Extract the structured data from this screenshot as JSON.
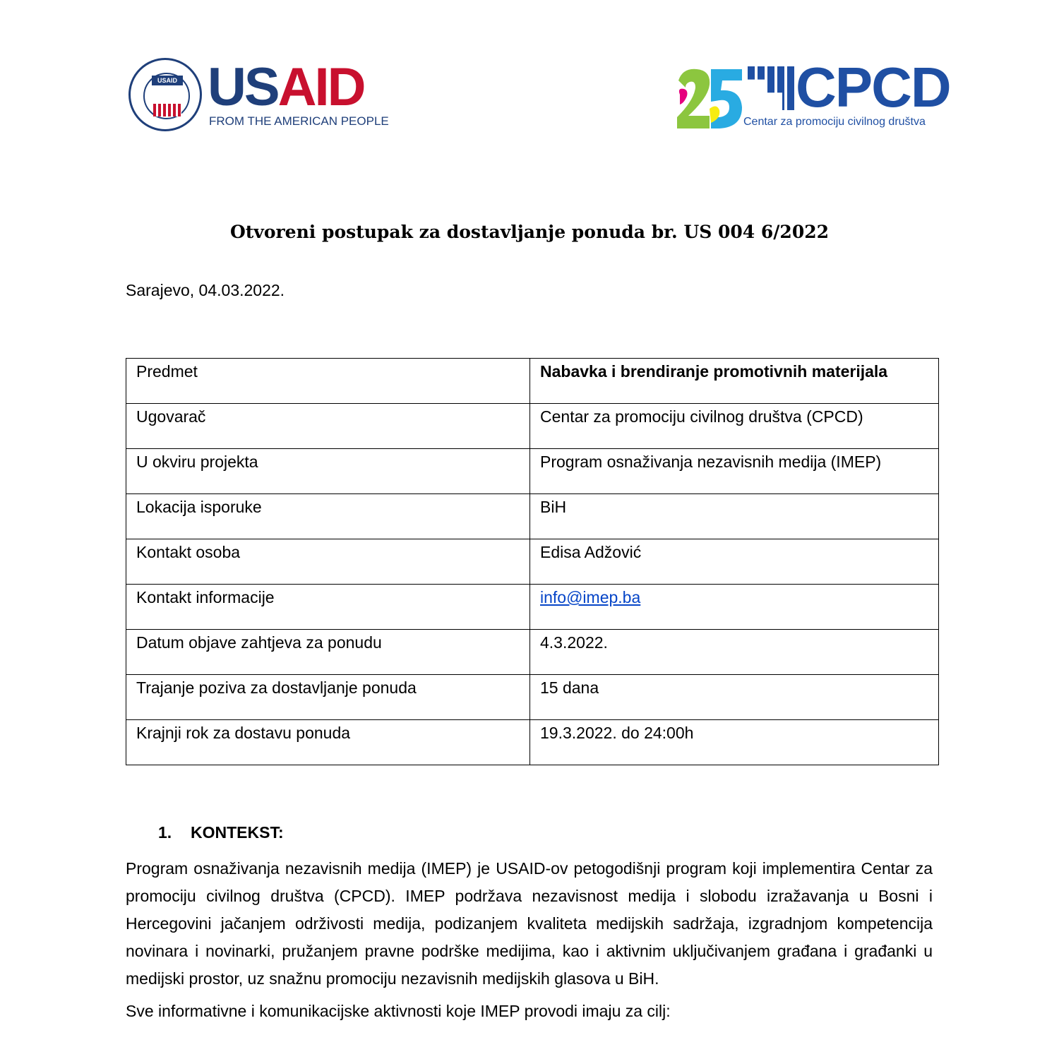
{
  "logos": {
    "usaid": {
      "seal_text": "USAID",
      "word_us": "US",
      "word_aid": "AID",
      "tagline": "FROM THE AMERICAN PEOPLE"
    },
    "cpcd": {
      "number": "25",
      "word": "CPCD",
      "tagline": "Centar za promociju civilnog društva"
    }
  },
  "title": "Otvoreni postupak za dostavljanje ponuda br. US 004 6/2022",
  "date": "Sarajevo, 04.03.2022.",
  "table": [
    {
      "label": "Predmet",
      "value": "Nabavka i brendiranje promotivnih materijala",
      "bold": true
    },
    {
      "label": "Ugovarač",
      "value": "Centar za promociju civilnog društva (CPCD)"
    },
    {
      "label": "U okviru projekta",
      "value": "Program osnaživanja nezavisnih medija (IMEP)"
    },
    {
      "label": "Lokacija isporuke",
      "value": "BiH"
    },
    {
      "label": "Kontakt osoba",
      "value": "Edisa Adžović"
    },
    {
      "label": "Kontakt informacije",
      "value": "info@imep.ba",
      "link": true
    },
    {
      "label": "Datum objave zahtjeva za ponudu",
      "value": "4.3.2022."
    },
    {
      "label": "Trajanje poziva za dostavljanje ponuda",
      "value": "15 dana"
    },
    {
      "label": "Krajnji rok za dostavu ponuda",
      "value": "19.3.2022. do 24:00h"
    }
  ],
  "section": {
    "number": "1.",
    "heading": "KONTEKST:"
  },
  "paragraph1": "Program osnaživanja nezavisnih medija (IMEP) je USAID-ov petogodišnji program koji implementira Centar za promociju civilnog društva (CPCD). IMEP podržava nezavisnost medija i slobodu izražavanja u Bosni i Hercegovini jačanjem održivosti medija, podizanjem kvaliteta medijskih sadržaja, izgradnjom kompetencija novinara i novinarki, pružanjem pravne podrške medijima, kao i aktivnim uključivanjem građana i građanki u medijski prostor, uz snažnu promociju nezavisnih medijskih glasova u BiH.",
  "paragraph2": "Sve informativne i komunikacijske aktivnosti koje IMEP provodi imaju za cilj:"
}
